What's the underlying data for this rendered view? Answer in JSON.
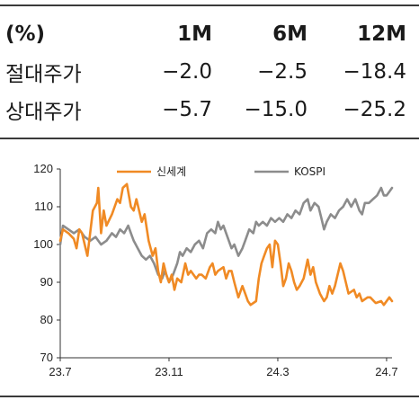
{
  "table": {
    "headers": [
      "(%)",
      "1M",
      "6M",
      "12M"
    ],
    "rows": [
      {
        "label": "절대주가",
        "values": [
          "−2.0",
          "−2.5",
          "−18.4"
        ]
      },
      {
        "label": "상대주가",
        "values": [
          "−5.7",
          "−15.0",
          "−25.2"
        ]
      }
    ]
  },
  "chart_data": {
    "type": "line",
    "ylim": [
      70,
      120
    ],
    "yticks": [
      "120",
      "110",
      "100",
      "90",
      "80",
      "70"
    ],
    "xticks": [
      {
        "label": "23.7",
        "x": 0
      },
      {
        "label": "23.11",
        "x": 4
      },
      {
        "label": "24.3",
        "x": 8
      },
      {
        "label": "24.7",
        "x": 12
      }
    ],
    "legend_position": "top",
    "series": [
      {
        "name": "신세계",
        "color": "#f08a24",
        "points": [
          [
            0,
            101
          ],
          [
            0.1,
            104
          ],
          [
            0.3,
            103
          ],
          [
            0.5,
            101.5
          ],
          [
            0.6,
            99
          ],
          [
            0.7,
            104
          ],
          [
            0.8,
            103
          ],
          [
            1.0,
            97
          ],
          [
            1.2,
            109
          ],
          [
            1.35,
            111
          ],
          [
            1.4,
            115
          ],
          [
            1.5,
            103
          ],
          [
            1.6,
            109
          ],
          [
            1.7,
            105
          ],
          [
            1.9,
            108
          ],
          [
            2.1,
            112
          ],
          [
            2.2,
            111
          ],
          [
            2.3,
            115
          ],
          [
            2.45,
            116
          ],
          [
            2.6,
            110
          ],
          [
            2.7,
            109
          ],
          [
            2.8,
            112
          ],
          [
            3.0,
            106
          ],
          [
            3.1,
            108
          ],
          [
            3.25,
            101
          ],
          [
            3.4,
            97
          ],
          [
            3.5,
            99
          ],
          [
            3.6,
            93
          ],
          [
            3.7,
            90
          ],
          [
            3.8,
            95
          ],
          [
            3.9,
            92
          ],
          [
            4.0,
            90
          ],
          [
            4.1,
            92
          ],
          [
            4.2,
            88
          ],
          [
            4.3,
            91
          ],
          [
            4.45,
            90
          ],
          [
            4.6,
            95
          ],
          [
            4.7,
            92
          ],
          [
            4.8,
            93
          ],
          [
            5.0,
            91
          ],
          [
            5.1,
            92
          ],
          [
            5.2,
            92
          ],
          [
            5.35,
            91
          ],
          [
            5.5,
            94
          ],
          [
            5.6,
            95
          ],
          [
            5.7,
            92
          ],
          [
            5.8,
            93
          ],
          [
            6.0,
            94
          ],
          [
            6.1,
            91
          ],
          [
            6.2,
            93
          ],
          [
            6.3,
            93
          ],
          [
            6.4,
            90
          ],
          [
            6.55,
            86
          ],
          [
            6.7,
            89
          ],
          [
            6.8,
            87
          ],
          [
            6.9,
            85
          ],
          [
            7.0,
            84
          ],
          [
            7.2,
            85
          ],
          [
            7.3,
            91
          ],
          [
            7.4,
            95
          ],
          [
            7.5,
            97
          ],
          [
            7.6,
            99
          ],
          [
            7.7,
            100
          ],
          [
            7.8,
            94
          ],
          [
            7.9,
            101
          ],
          [
            8.0,
            100
          ],
          [
            8.1,
            95
          ],
          [
            8.2,
            89
          ],
          [
            8.3,
            91
          ],
          [
            8.4,
            95
          ],
          [
            8.5,
            93
          ],
          [
            8.6,
            90
          ],
          [
            8.7,
            88
          ],
          [
            8.8,
            89
          ],
          [
            8.95,
            91
          ],
          [
            9.1,
            96
          ],
          [
            9.2,
            92
          ],
          [
            9.3,
            94
          ],
          [
            9.4,
            90
          ],
          [
            9.55,
            87
          ],
          [
            9.7,
            85
          ],
          [
            9.8,
            86
          ],
          [
            9.9,
            89
          ],
          [
            10.0,
            87
          ],
          [
            10.1,
            89
          ],
          [
            10.3,
            95
          ],
          [
            10.4,
            93
          ],
          [
            10.5,
            90
          ],
          [
            10.6,
            87
          ],
          [
            10.8,
            88
          ],
          [
            10.9,
            86
          ],
          [
            11.0,
            87
          ],
          [
            11.1,
            85
          ],
          [
            11.3,
            86
          ],
          [
            11.4,
            86
          ],
          [
            11.6,
            84.5
          ],
          [
            11.8,
            85
          ],
          [
            11.9,
            84
          ],
          [
            12.1,
            86
          ],
          [
            12.2,
            85
          ]
        ]
      },
      {
        "name": "KOSPI",
        "color": "#8c8c8c",
        "points": [
          [
            0,
            100
          ],
          [
            0.1,
            105
          ],
          [
            0.3,
            104
          ],
          [
            0.5,
            103
          ],
          [
            0.7,
            104
          ],
          [
            0.9,
            102
          ],
          [
            1.1,
            101
          ],
          [
            1.3,
            102
          ],
          [
            1.5,
            100
          ],
          [
            1.7,
            101
          ],
          [
            1.9,
            103
          ],
          [
            2.05,
            102
          ],
          [
            2.2,
            104
          ],
          [
            2.35,
            103
          ],
          [
            2.5,
            105
          ],
          [
            2.6,
            103
          ],
          [
            2.7,
            101
          ],
          [
            2.85,
            99
          ],
          [
            3.0,
            97
          ],
          [
            3.15,
            96
          ],
          [
            3.3,
            97
          ],
          [
            3.45,
            95
          ],
          [
            3.6,
            92
          ],
          [
            3.75,
            91
          ],
          [
            3.85,
            93
          ],
          [
            4.0,
            90
          ],
          [
            4.15,
            92
          ],
          [
            4.3,
            95
          ],
          [
            4.4,
            98
          ],
          [
            4.5,
            97
          ],
          [
            4.65,
            99
          ],
          [
            4.8,
            98
          ],
          [
            4.95,
            100
          ],
          [
            5.1,
            101
          ],
          [
            5.25,
            99
          ],
          [
            5.4,
            103
          ],
          [
            5.55,
            104
          ],
          [
            5.7,
            103
          ],
          [
            5.8,
            106
          ],
          [
            5.9,
            104
          ],
          [
            6.0,
            105
          ],
          [
            6.1,
            103
          ],
          [
            6.2,
            101
          ],
          [
            6.3,
            99
          ],
          [
            6.4,
            100
          ],
          [
            6.55,
            97
          ],
          [
            6.7,
            99
          ],
          [
            6.8,
            101
          ],
          [
            6.95,
            104
          ],
          [
            7.1,
            103
          ],
          [
            7.2,
            106
          ],
          [
            7.3,
            105
          ],
          [
            7.45,
            106
          ],
          [
            7.6,
            105
          ],
          [
            7.75,
            107
          ],
          [
            7.9,
            106
          ],
          [
            8.05,
            107
          ],
          [
            8.2,
            106
          ],
          [
            8.35,
            108
          ],
          [
            8.5,
            107
          ],
          [
            8.65,
            109
          ],
          [
            8.8,
            108
          ],
          [
            8.95,
            111
          ],
          [
            9.1,
            112
          ],
          [
            9.2,
            109
          ],
          [
            9.35,
            111
          ],
          [
            9.5,
            110
          ],
          [
            9.6,
            107
          ],
          [
            9.7,
            104
          ],
          [
            9.8,
            106
          ],
          [
            9.95,
            108
          ],
          [
            10.1,
            107
          ],
          [
            10.25,
            109
          ],
          [
            10.4,
            110
          ],
          [
            10.55,
            112
          ],
          [
            10.7,
            110
          ],
          [
            10.85,
            112
          ],
          [
            11.0,
            109
          ],
          [
            11.1,
            108
          ],
          [
            11.2,
            111
          ],
          [
            11.35,
            111
          ],
          [
            11.5,
            112
          ],
          [
            11.65,
            113
          ],
          [
            11.8,
            115
          ],
          [
            11.9,
            113
          ],
          [
            12.0,
            113
          ],
          [
            12.1,
            114
          ],
          [
            12.2,
            115
          ]
        ]
      }
    ]
  }
}
